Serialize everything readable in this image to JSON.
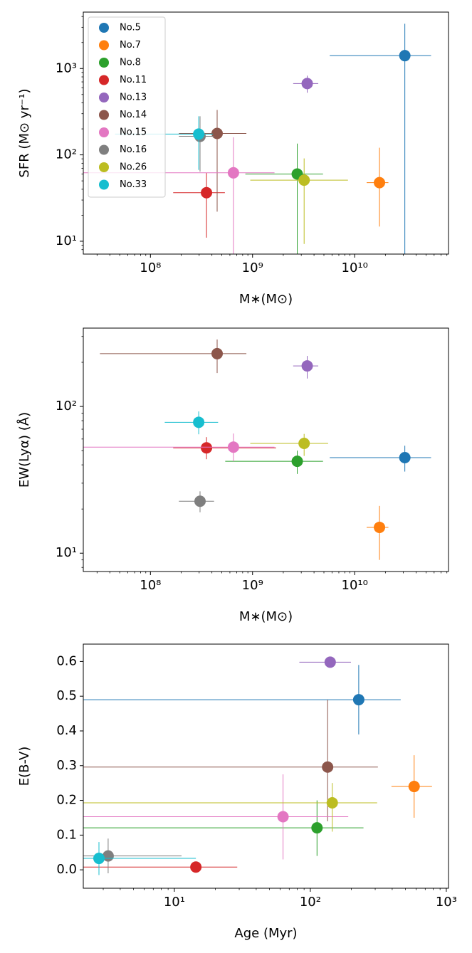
{
  "chart_data": [
    {
      "type": "scatter",
      "xscale": "log",
      "yscale": "log",
      "xlabel": "M∗(M⊙)",
      "ylabel": "SFR (M⊙ yr⁻¹)",
      "legend": "upper left",
      "xlim": [
        22000000.0,
        83000000000.0
      ],
      "ylim": [
        7.1,
        4500
      ],
      "xticks": [
        {
          "value": 100000000.0,
          "label": "10⁸"
        },
        {
          "value": 1000000000.0,
          "label": "10⁹"
        },
        {
          "value": 10000000000.0,
          "label": "10¹⁰"
        }
      ],
      "yticks": [
        {
          "value": 10,
          "label": "10¹"
        },
        {
          "value": 100,
          "label": "10²"
        },
        {
          "value": 1000,
          "label": "10³"
        }
      ],
      "series": [
        {
          "name": "No.5",
          "color": "#1f77b4",
          "x": [
            31000000000.0
          ],
          "values": [
            1410
          ],
          "xbounds": [
            5700000000.0,
            56000000000.0
          ],
          "ybounds": [
            1,
            3300
          ]
        },
        {
          "name": "No.7",
          "color": "#ff7f0e",
          "x": [
            17500000000.0
          ],
          "values": [
            47.7
          ],
          "xbounds": [
            13100000000.0,
            21400000000.0
          ],
          "ybounds": [
            14.8,
            121
          ]
        },
        {
          "name": "No.8",
          "color": "#2ca02c",
          "x": [
            2740000000.0
          ],
          "values": [
            60
          ],
          "xbounds": [
            850000000.0,
            4900000000.0
          ],
          "ybounds": [
            1,
            135
          ]
        },
        {
          "name": "No.11",
          "color": "#d62728",
          "x": [
            354000000.0
          ],
          "values": [
            36.5
          ],
          "xbounds": [
            167000000.0,
            536000000.0
          ],
          "ybounds": [
            11,
            62
          ]
        },
        {
          "name": "No.13",
          "color": "#9467bd",
          "x": [
            3430000000.0
          ],
          "values": [
            670
          ],
          "xbounds": [
            2500000000.0,
            4400000000.0
          ],
          "ybounds": [
            524,
            826
          ]
        },
        {
          "name": "No.14",
          "color": "#8c564b",
          "x": [
            450000000.0
          ],
          "values": [
            177
          ],
          "xbounds": [
            190000000.0,
            870000000.0
          ],
          "ybounds": [
            22,
            331
          ]
        },
        {
          "name": "No.15",
          "color": "#e377c2",
          "x": [
            650000000.0
          ],
          "values": [
            62
          ],
          "xbounds": [
            10000000.0,
            1640000000.0
          ],
          "ybounds": [
            1,
            160
          ]
        },
        {
          "name": "No.16",
          "color": "#7f7f7f",
          "x": [
            306000000.0
          ],
          "values": [
            164
          ],
          "xbounds": [
            190000000.0,
            420000000.0
          ],
          "ybounds": [
            64,
            280
          ]
        },
        {
          "name": "No.26",
          "color": "#bcbd22",
          "x": [
            3200000000.0
          ],
          "values": [
            51
          ],
          "xbounds": [
            950000000.0,
            8600000000.0
          ],
          "ybounds": [
            9.3,
            91
          ]
        },
        {
          "name": "No.33",
          "color": "#17becf",
          "x": [
            297000000.0
          ],
          "values": [
            174
          ],
          "xbounds": [
            45000000.0,
            410000000.0
          ],
          "ybounds": [
            67,
            280
          ]
        }
      ]
    },
    {
      "type": "scatter",
      "xscale": "log",
      "yscale": "log",
      "xlabel": "M∗(M⊙)",
      "ylabel": "EW(Lyα) (Å)",
      "xlim": [
        22000000.0,
        83000000000.0
      ],
      "ylim": [
        7.5,
        342
      ],
      "xticks": [
        {
          "value": 100000000.0,
          "label": "10⁸"
        },
        {
          "value": 1000000000.0,
          "label": "10⁹"
        },
        {
          "value": 10000000000.0,
          "label": "10¹⁰"
        }
      ],
      "yticks": [
        {
          "value": 10,
          "label": "10¹"
        },
        {
          "value": 100,
          "label": "10²"
        }
      ],
      "series": [
        {
          "color": "#1f77b4",
          "x": [
            31000000000.0
          ],
          "values": [
            44.8
          ],
          "xbounds": [
            5700000000.0,
            56000000000.0
          ],
          "ybounds": [
            36,
            54
          ]
        },
        {
          "color": "#ff7f0e",
          "x": [
            17500000000.0
          ],
          "values": [
            15
          ],
          "xbounds": [
            13100000000.0,
            21400000000.0
          ],
          "ybounds": [
            9,
            21
          ]
        },
        {
          "color": "#2ca02c",
          "x": [
            2740000000.0
          ],
          "values": [
            42.3
          ],
          "xbounds": [
            540000000.0,
            4900000000.0
          ],
          "ybounds": [
            34.7,
            50
          ]
        },
        {
          "color": "#d62728",
          "x": [
            354000000.0
          ],
          "values": [
            52.2
          ],
          "xbounds": [
            167000000.0,
            1700000000.0
          ],
          "ybounds": [
            43.7,
            61.8
          ]
        },
        {
          "color": "#9467bd",
          "x": [
            3430000000.0
          ],
          "values": [
            189
          ],
          "xbounds": [
            2500000000.0,
            4400000000.0
          ],
          "ybounds": [
            155,
            221
          ]
        },
        {
          "color": "#8c564b",
          "x": [
            450000000.0
          ],
          "values": [
            229
          ],
          "xbounds": [
            32000000.0,
            870000000.0
          ],
          "ybounds": [
            169,
            286
          ]
        },
        {
          "color": "#e377c2",
          "x": [
            650000000.0
          ],
          "values": [
            52.8
          ],
          "xbounds": [
            10000000.0,
            1640000000.0
          ],
          "ybounds": [
            42.3,
            65.4
          ]
        },
        {
          "color": "#7f7f7f",
          "x": [
            306000000.0
          ],
          "values": [
            22.6
          ],
          "xbounds": [
            190000000.0,
            420000000.0
          ],
          "ybounds": [
            19,
            26.4
          ]
        },
        {
          "color": "#bcbd22",
          "x": [
            3200000000.0
          ],
          "values": [
            56
          ],
          "xbounds": [
            950000000.0,
            5500000000.0
          ],
          "ybounds": [
            46,
            65
          ]
        },
        {
          "color": "#17becf",
          "x": [
            297000000.0
          ],
          "values": [
            78
          ],
          "xbounds": [
            138000000.0,
            460000000.0
          ],
          "ybounds": [
            64.6,
            92.5
          ]
        }
      ]
    },
    {
      "type": "scatter",
      "xscale": "log",
      "xlabel": "Age (Myr)",
      "ylabel": "E(B-V)",
      "xlim": [
        2.14,
        1038
      ],
      "ylim": [
        -0.053,
        0.65
      ],
      "xticks": [
        {
          "value": 10,
          "label": "10¹"
        },
        {
          "value": 100,
          "label": "10²"
        },
        {
          "value": 1000,
          "label": "10³"
        }
      ],
      "yticks": [
        {
          "value": 0,
          "label": "0.0"
        },
        0.1,
        0.2,
        0.3,
        0.4,
        0.5,
        0.6
      ],
      "series": [
        {
          "color": "#1f77b4",
          "x": [
            227
          ],
          "values": [
            0.49
          ],
          "xbounds": [
            1,
            462
          ],
          "ybounds": [
            0.39,
            0.59
          ]
        },
        {
          "color": "#ff7f0e",
          "x": [
            580
          ],
          "values": [
            0.24
          ],
          "xbounds": [
            395,
            785
          ],
          "ybounds": [
            0.15,
            0.33
          ]
        },
        {
          "color": "#2ca02c",
          "x": [
            112
          ],
          "values": [
            0.121
          ],
          "xbounds": [
            1,
            246
          ],
          "ybounds": [
            0.04,
            0.2
          ]
        },
        {
          "color": "#d62728",
          "x": [
            14.4
          ],
          "values": [
            0.008
          ],
          "xbounds": [
            1,
            29
          ],
          "ybounds": [
            0,
            0.015
          ]
        },
        {
          "color": "#9467bd",
          "x": [
            140
          ],
          "values": [
            0.598
          ],
          "xbounds": [
            83,
            199
          ],
          "ybounds": [
            0.59,
            0.605
          ]
        },
        {
          "color": "#8c564b",
          "x": [
            134
          ],
          "values": [
            0.296
          ],
          "xbounds": [
            1,
            314
          ],
          "ybounds": [
            0.14,
            0.49
          ]
        },
        {
          "color": "#e377c2",
          "x": [
            63
          ],
          "values": [
            0.153
          ],
          "xbounds": [
            1,
            190
          ],
          "ybounds": [
            0.03,
            0.275
          ]
        },
        {
          "color": "#7f7f7f",
          "x": [
            3.26
          ],
          "values": [
            0.04
          ],
          "xbounds": [
            1,
            11.3
          ],
          "ybounds": [
            -0.01,
            0.09
          ]
        },
        {
          "color": "#bcbd22",
          "x": [
            145
          ],
          "values": [
            0.193
          ],
          "xbounds": [
            1,
            310
          ],
          "ybounds": [
            0.11,
            0.25
          ]
        },
        {
          "color": "#17becf",
          "x": [
            2.79
          ],
          "values": [
            0.033
          ],
          "xbounds": [
            1,
            14.4
          ],
          "ybounds": [
            -0.015,
            0.08
          ]
        }
      ]
    }
  ]
}
